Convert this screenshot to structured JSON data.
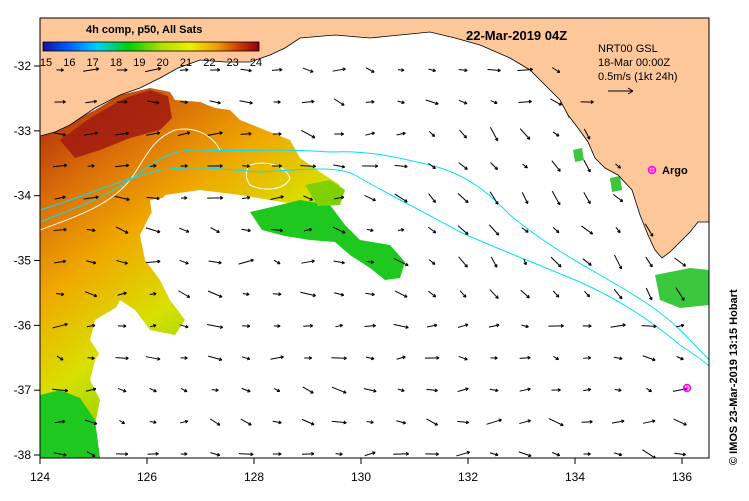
{
  "header": {
    "composite_label": "4h comp, p50, All Sats",
    "date_label": "22-Mar-2019 04Z",
    "side_credit": "© IMOS 23-Mar-2019 13:15 Hobart"
  },
  "colorbar": {
    "ticks": [
      "15",
      "16",
      "17",
      "18",
      "19",
      "20",
      "21",
      "22",
      "23",
      "24"
    ]
  },
  "current_legend": {
    "line1": "NRT00 GSL",
    "line2": "18-Mar 00:00Z",
    "line3": "0.5m/s (1kt 24h)"
  },
  "markers": {
    "argo_label": "Argo"
  },
  "axes": {
    "x_ticks": [
      "124",
      "126",
      "128",
      "130",
      "132",
      "134",
      "136"
    ],
    "y_ticks": [
      "-32",
      "-33",
      "-34",
      "-35",
      "-36",
      "-37",
      "-38"
    ]
  },
  "colors": {
    "land": "#fdc79a",
    "cold": "#00c800",
    "mid": "#e6e600",
    "warm": "#e8a000",
    "hot": "#a01010",
    "contour": "#00e0ff",
    "argo": "#ff00ff"
  }
}
